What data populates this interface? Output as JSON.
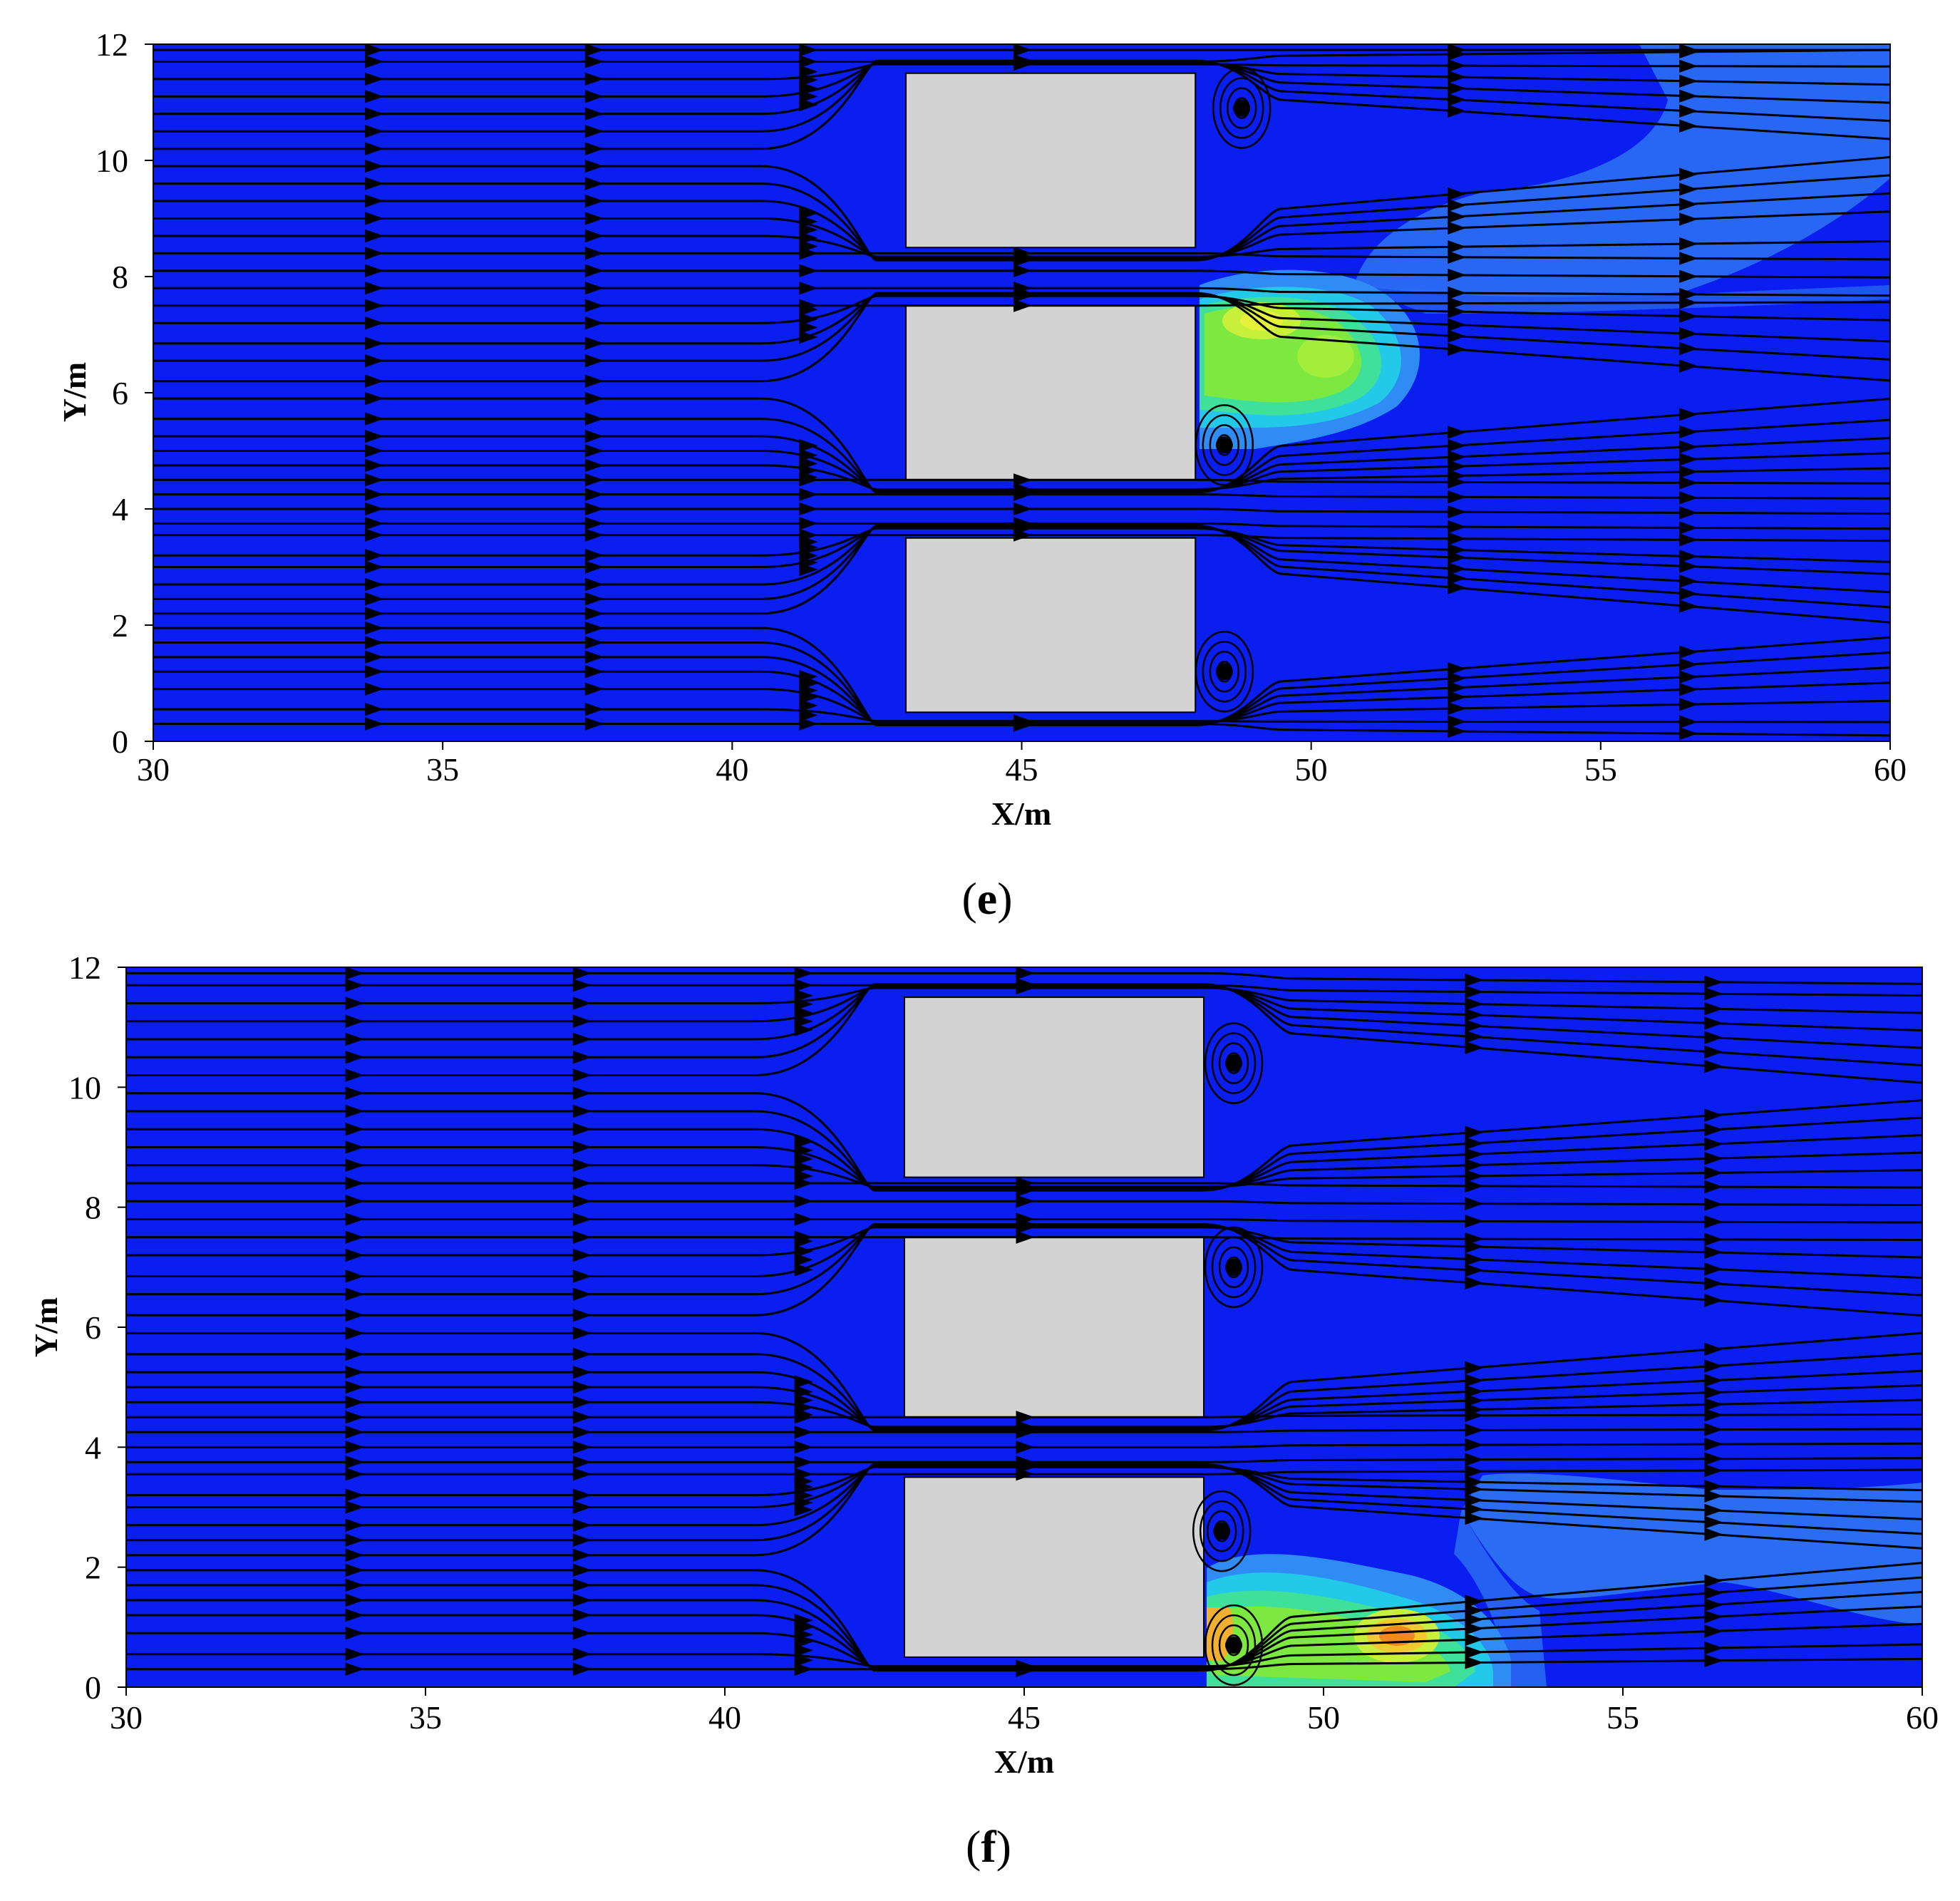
{
  "chart_data": [
    {
      "type": "heatmap",
      "panel_label": "e",
      "xlabel": "X/m",
      "ylabel": "Y/m",
      "xlim": [
        30,
        60
      ],
      "ylim": [
        0,
        12
      ],
      "xticks": [
        "30",
        "35",
        "40",
        "45",
        "50",
        "55",
        "60"
      ],
      "yticks": [
        "0",
        "2",
        "4",
        "6",
        "8",
        "10",
        "12"
      ],
      "background_color": "#0a1ef0",
      "obstacles": [
        {
          "x0": 43,
          "x1": 48,
          "y0": 8.5,
          "y1": 11.5
        },
        {
          "x0": 43,
          "x1": 48,
          "y0": 4.5,
          "y1": 7.5
        },
        {
          "x0": 43,
          "x1": 48,
          "y0": 0.5,
          "y1": 3.5
        }
      ],
      "streamline_y_starts": [
        0.3,
        0.55,
        0.9,
        1.2,
        1.45,
        1.7,
        1.95,
        2.2,
        2.45,
        2.7,
        3.0,
        3.2,
        3.55,
        3.75,
        4.0,
        4.25,
        4.5,
        4.75,
        5.0,
        5.25,
        5.55,
        5.9,
        6.2,
        6.55,
        6.85,
        7.2,
        7.5,
        7.8,
        8.1,
        8.4,
        8.7,
        9.0,
        9.3,
        9.6,
        9.9,
        10.2,
        10.5,
        10.8,
        11.1,
        11.4,
        11.7,
        11.9
      ],
      "vortices": [
        {
          "x": 48.5,
          "y": 5.1
        },
        {
          "x": 48.5,
          "y": 1.2
        },
        {
          "x": 48.8,
          "y": 10.9
        }
      ]
    },
    {
      "type": "heatmap",
      "panel_label": "f",
      "xlabel": "X/m",
      "ylabel": "Y/m",
      "xlim": [
        30,
        60
      ],
      "ylim": [
        0,
        12
      ],
      "xticks": [
        "30",
        "35",
        "40",
        "45",
        "50",
        "55",
        "60"
      ],
      "yticks": [
        "0",
        "2",
        "4",
        "6",
        "8",
        "10",
        "12"
      ],
      "background_color": "#0a1ef0",
      "obstacles": [
        {
          "x0": 43,
          "x1": 48,
          "y0": 8.5,
          "y1": 11.5
        },
        {
          "x0": 43,
          "x1": 48,
          "y0": 4.5,
          "y1": 7.5
        },
        {
          "x0": 43,
          "x1": 48,
          "y0": 0.5,
          "y1": 3.5
        }
      ],
      "streamline_y_starts": [
        0.3,
        0.55,
        0.9,
        1.2,
        1.45,
        1.7,
        1.95,
        2.2,
        2.45,
        2.7,
        3.0,
        3.2,
        3.55,
        3.75,
        4.0,
        4.25,
        4.5,
        4.75,
        5.0,
        5.25,
        5.55,
        5.9,
        6.2,
        6.55,
        6.85,
        7.2,
        7.5,
        7.8,
        8.1,
        8.4,
        8.7,
        9.0,
        9.3,
        9.6,
        9.9,
        10.2,
        10.5,
        10.8,
        11.1,
        11.4,
        11.7,
        11.9
      ],
      "vortices": [
        {
          "x": 48.5,
          "y": 10.4
        },
        {
          "x": 48.5,
          "y": 7.0
        },
        {
          "x": 48.3,
          "y": 2.6
        },
        {
          "x": 48.5,
          "y": 0.7
        }
      ]
    }
  ]
}
